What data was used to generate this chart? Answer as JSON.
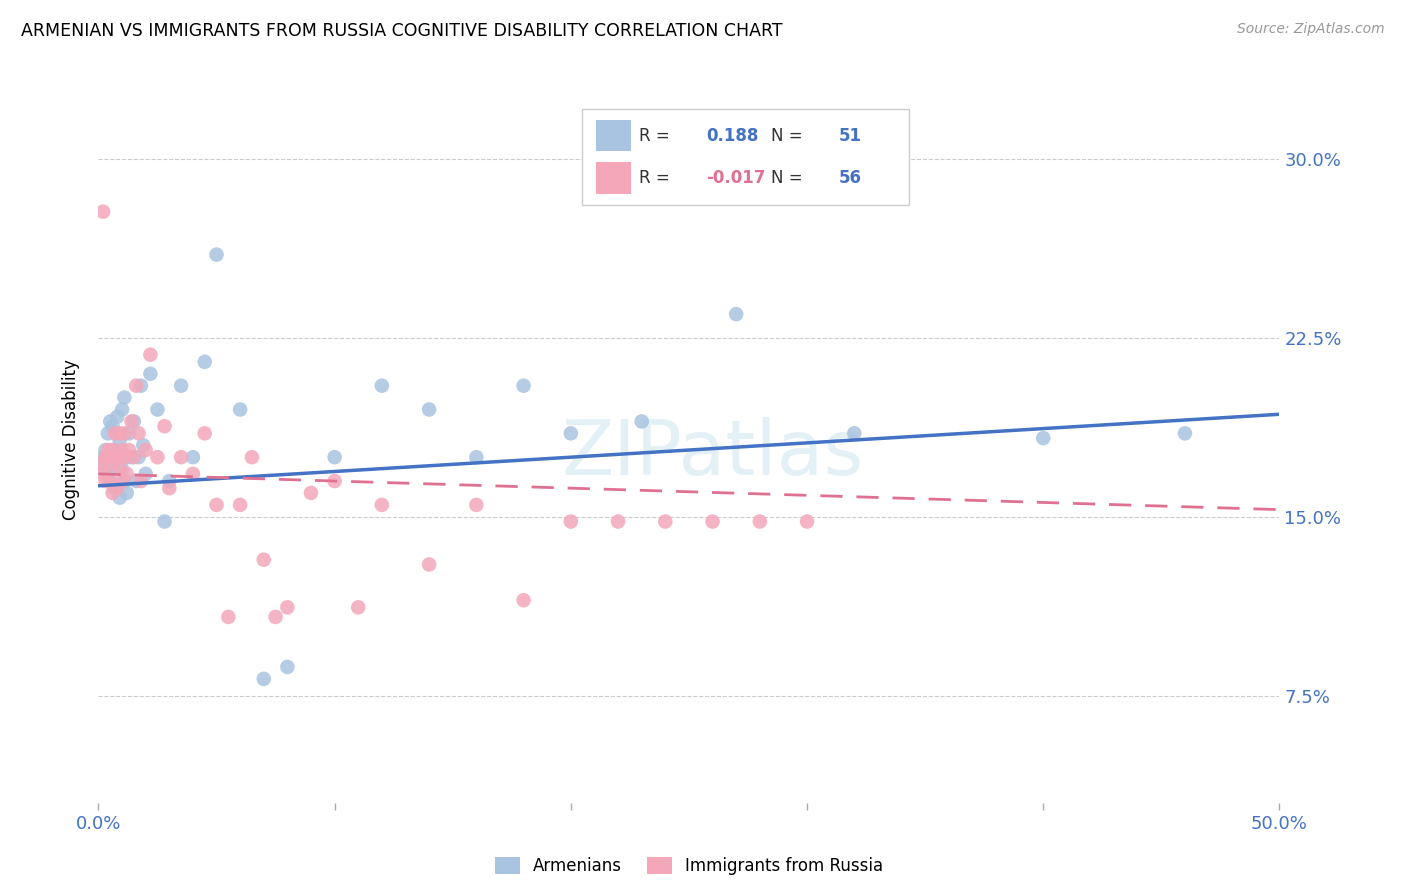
{
  "title": "ARMENIAN VS IMMIGRANTS FROM RUSSIA COGNITIVE DISABILITY CORRELATION CHART",
  "source": "Source: ZipAtlas.com",
  "ylabel": "Cognitive Disability",
  "ytick_labels": [
    "7.5%",
    "15.0%",
    "22.5%",
    "30.0%"
  ],
  "ytick_values": [
    0.075,
    0.15,
    0.225,
    0.3
  ],
  "xlim": [
    0.0,
    0.5
  ],
  "ylim": [
    0.03,
    0.335
  ],
  "legend_armenians": "Armenians",
  "legend_russia": "Immigrants from Russia",
  "R_armenians": "0.188",
  "N_armenians": "51",
  "R_russia": "-0.017",
  "N_russia": "56",
  "color_armenians": "#a8c4e0",
  "color_russia": "#f4a7b9",
  "line_color_armenians": "#4472c4",
  "line_color_russia": "#e07090",
  "watermark": "ZIPatlas",
  "armenians_x": [
    0.001,
    0.002,
    0.003,
    0.004,
    0.004,
    0.005,
    0.005,
    0.006,
    0.006,
    0.007,
    0.007,
    0.008,
    0.008,
    0.009,
    0.009,
    0.01,
    0.01,
    0.011,
    0.011,
    0.012,
    0.012,
    0.013,
    0.014,
    0.015,
    0.016,
    0.017,
    0.018,
    0.019,
    0.02,
    0.022,
    0.025,
    0.028,
    0.03,
    0.035,
    0.04,
    0.045,
    0.05,
    0.06,
    0.07,
    0.08,
    0.1,
    0.12,
    0.14,
    0.16,
    0.18,
    0.2,
    0.23,
    0.27,
    0.32,
    0.4,
    0.46
  ],
  "armenians_y": [
    0.172,
    0.175,
    0.178,
    0.168,
    0.185,
    0.165,
    0.19,
    0.172,
    0.188,
    0.162,
    0.178,
    0.175,
    0.192,
    0.158,
    0.182,
    0.17,
    0.195,
    0.165,
    0.2,
    0.16,
    0.175,
    0.185,
    0.175,
    0.19,
    0.165,
    0.175,
    0.205,
    0.18,
    0.168,
    0.21,
    0.195,
    0.148,
    0.165,
    0.205,
    0.175,
    0.215,
    0.26,
    0.195,
    0.082,
    0.087,
    0.175,
    0.205,
    0.195,
    0.175,
    0.205,
    0.185,
    0.19,
    0.235,
    0.185,
    0.183,
    0.185
  ],
  "russia_x": [
    0.001,
    0.002,
    0.002,
    0.003,
    0.003,
    0.004,
    0.004,
    0.005,
    0.005,
    0.006,
    0.006,
    0.007,
    0.007,
    0.008,
    0.008,
    0.009,
    0.009,
    0.01,
    0.01,
    0.011,
    0.011,
    0.012,
    0.013,
    0.014,
    0.015,
    0.016,
    0.017,
    0.018,
    0.02,
    0.022,
    0.025,
    0.028,
    0.03,
    0.035,
    0.04,
    0.045,
    0.05,
    0.055,
    0.06,
    0.065,
    0.07,
    0.075,
    0.08,
    0.09,
    0.1,
    0.11,
    0.12,
    0.14,
    0.16,
    0.18,
    0.2,
    0.22,
    0.24,
    0.26,
    0.28,
    0.3
  ],
  "russia_y": [
    0.172,
    0.278,
    0.168,
    0.175,
    0.165,
    0.178,
    0.175,
    0.165,
    0.172,
    0.178,
    0.16,
    0.175,
    0.185,
    0.175,
    0.162,
    0.185,
    0.17,
    0.165,
    0.178,
    0.175,
    0.185,
    0.168,
    0.178,
    0.19,
    0.175,
    0.205,
    0.185,
    0.165,
    0.178,
    0.218,
    0.175,
    0.188,
    0.162,
    0.175,
    0.168,
    0.185,
    0.155,
    0.108,
    0.155,
    0.175,
    0.132,
    0.108,
    0.112,
    0.16,
    0.165,
    0.112,
    0.155,
    0.13,
    0.155,
    0.115,
    0.148,
    0.148,
    0.148,
    0.148,
    0.148,
    0.148
  ],
  "line_arm_x0": 0.0,
  "line_arm_x1": 0.5,
  "line_arm_y0": 0.163,
  "line_arm_y1": 0.193,
  "line_rus_x0": 0.0,
  "line_rus_x1": 0.5,
  "line_rus_y0": 0.168,
  "line_rus_y1": 0.153
}
